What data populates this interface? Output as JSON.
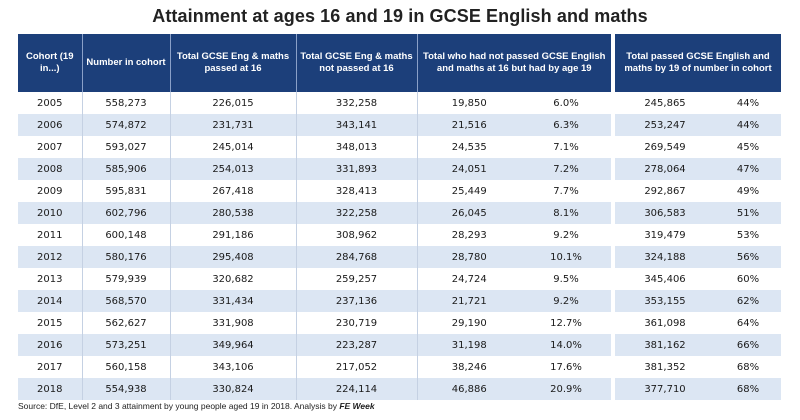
{
  "title": "Attainment at ages 16 and 19 in GCSE English and maths",
  "headers": {
    "cohort": "Cohort (19 in...)",
    "number": "Number in cohort",
    "passed16": "Total GCSE Eng & maths passed at 16",
    "notpassed16": "Total GCSE Eng & maths not passed at 16",
    "passed19": "Total who had not passed GCSE English and maths at 16 but had by age 19",
    "total19": "Total passed GCSE English and maths by 19 of number in cohort"
  },
  "rows": [
    {
      "year": "2005",
      "cohort": "558,273",
      "p16": "226,015",
      "np16": "332,258",
      "by19": "19,850",
      "by19pct": "6.0%",
      "tot19": "245,865",
      "tot19pct": "44%"
    },
    {
      "year": "2006",
      "cohort": "574,872",
      "p16": "231,731",
      "np16": "343,141",
      "by19": "21,516",
      "by19pct": "6.3%",
      "tot19": "253,247",
      "tot19pct": "44%"
    },
    {
      "year": "2007",
      "cohort": "593,027",
      "p16": "245,014",
      "np16": "348,013",
      "by19": "24,535",
      "by19pct": "7.1%",
      "tot19": "269,549",
      "tot19pct": "45%"
    },
    {
      "year": "2008",
      "cohort": "585,906",
      "p16": "254,013",
      "np16": "331,893",
      "by19": "24,051",
      "by19pct": "7.2%",
      "tot19": "278,064",
      "tot19pct": "47%"
    },
    {
      "year": "2009",
      "cohort": "595,831",
      "p16": "267,418",
      "np16": "328,413",
      "by19": "25,449",
      "by19pct": "7.7%",
      "tot19": "292,867",
      "tot19pct": "49%"
    },
    {
      "year": "2010",
      "cohort": "602,796",
      "p16": "280,538",
      "np16": "322,258",
      "by19": "26,045",
      "by19pct": "8.1%",
      "tot19": "306,583",
      "tot19pct": "51%"
    },
    {
      "year": "2011",
      "cohort": "600,148",
      "p16": "291,186",
      "np16": "308,962",
      "by19": "28,293",
      "by19pct": "9.2%",
      "tot19": "319,479",
      "tot19pct": "53%"
    },
    {
      "year": "2012",
      "cohort": "580,176",
      "p16": "295,408",
      "np16": "284,768",
      "by19": "28,780",
      "by19pct": "10.1%",
      "tot19": "324,188",
      "tot19pct": "56%"
    },
    {
      "year": "2013",
      "cohort": "579,939",
      "p16": "320,682",
      "np16": "259,257",
      "by19": "24,724",
      "by19pct": "9.5%",
      "tot19": "345,406",
      "tot19pct": "60%"
    },
    {
      "year": "2014",
      "cohort": "568,570",
      "p16": "331,434",
      "np16": "237,136",
      "by19": "21,721",
      "by19pct": "9.2%",
      "tot19": "353,155",
      "tot19pct": "62%"
    },
    {
      "year": "2015",
      "cohort": "562,627",
      "p16": "331,908",
      "np16": "230,719",
      "by19": "29,190",
      "by19pct": "12.7%",
      "tot19": "361,098",
      "tot19pct": "64%"
    },
    {
      "year": "2016",
      "cohort": "573,251",
      "p16": "349,964",
      "np16": "223,287",
      "by19": "31,198",
      "by19pct": "14.0%",
      "tot19": "381,162",
      "tot19pct": "66%"
    },
    {
      "year": "2017",
      "cohort": "560,158",
      "p16": "343,106",
      "np16": "217,052",
      "by19": "38,246",
      "by19pct": "17.6%",
      "tot19": "381,352",
      "tot19pct": "68%"
    },
    {
      "year": "2018",
      "cohort": "554,938",
      "p16": "330,824",
      "np16": "224,114",
      "by19": "46,886",
      "by19pct": "20.9%",
      "tot19": "377,710",
      "tot19pct": "68%"
    }
  ],
  "source": {
    "text": "Source: DfE, Level 2 and 3 attainment by young people aged 19 in 2018. Analysis by ",
    "brand": "FE Week"
  },
  "colors": {
    "header_bg": "#1c3f7a",
    "stripe": "#dce6f3"
  }
}
